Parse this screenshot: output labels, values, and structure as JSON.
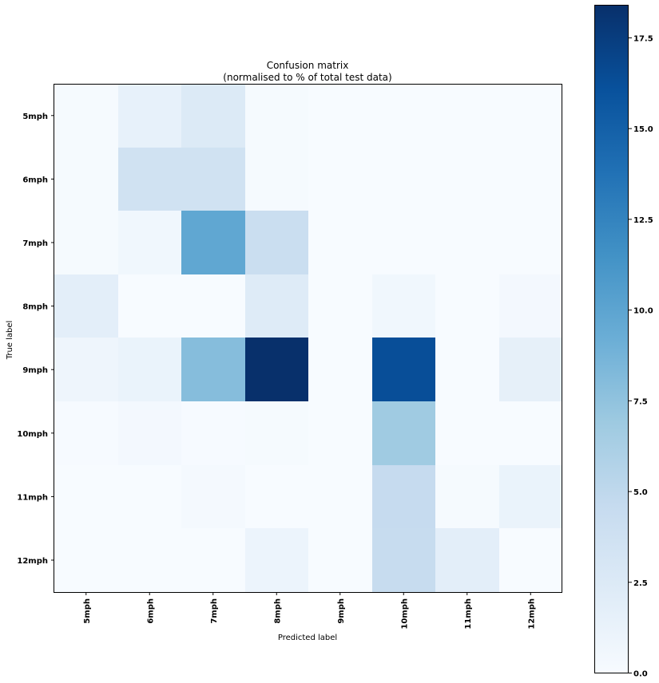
{
  "chart_data": {
    "type": "heatmap",
    "title": "Confusion matrix",
    "subtitle": "(normalised to % of total test data)",
    "xlabel": "Predicted label",
    "ylabel": "True label",
    "x_categories": [
      "5mph",
      "6mph",
      "7mph",
      "8mph",
      "9mph",
      "10mph",
      "11mph",
      "12mph"
    ],
    "y_categories": [
      "5mph",
      "6mph",
      "7mph",
      "8mph",
      "9mph",
      "10mph",
      "11mph",
      "12mph"
    ],
    "values": [
      [
        0.2,
        1.5,
        2.5,
        0.2,
        0.0,
        0.0,
        0.0,
        0.0
      ],
      [
        0.2,
        3.6,
        3.6,
        0.2,
        0.0,
        0.0,
        0.0,
        0.0
      ],
      [
        0.2,
        0.6,
        9.8,
        4.2,
        0.0,
        0.0,
        0.0,
        0.0
      ],
      [
        1.8,
        0.0,
        0.0,
        2.3,
        0.0,
        0.6,
        0.0,
        0.4
      ],
      [
        0.8,
        1.2,
        8.0,
        18.4,
        0.0,
        16.3,
        0.0,
        1.6
      ],
      [
        0.1,
        0.4,
        0.1,
        0.2,
        0.0,
        6.8,
        0.0,
        0.0
      ],
      [
        0.0,
        0.0,
        0.3,
        0.0,
        0.0,
        4.6,
        0.2,
        1.2
      ],
      [
        0.0,
        0.0,
        0.0,
        1.0,
        0.0,
        4.5,
        1.8,
        0.0
      ]
    ],
    "colormap": "Blues",
    "vmin": 0,
    "vmax": 18.4,
    "colorbar_ticks": [
      "0.0",
      "2.5",
      "5.0",
      "7.5",
      "10.0",
      "12.5",
      "15.0",
      "17.5"
    ],
    "colorbar_tick_values": [
      0,
      2.5,
      5,
      7.5,
      10,
      12.5,
      15,
      17.5
    ],
    "grid": false
  }
}
